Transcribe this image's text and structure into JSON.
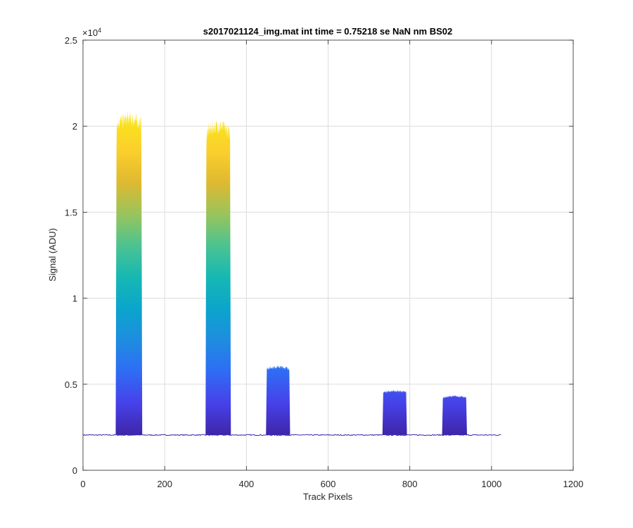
{
  "chart_data": {
    "type": "area",
    "title": "s2017021124_img.mat int time = 0.75218 se  NaN nm BS02",
    "xlabel": "Track Pixels",
    "ylabel": "Signal (ADU)",
    "xlim": [
      0,
      1200
    ],
    "ylim": [
      0,
      25000
    ],
    "x_ticks": [
      0,
      200,
      400,
      600,
      800,
      1000,
      1200
    ],
    "x_tick_labels": [
      "0",
      "200",
      "400",
      "600",
      "800",
      "1000",
      "1200"
    ],
    "y_ticks": [
      0,
      5000,
      10000,
      15000,
      20000,
      25000
    ],
    "y_tick_labels": [
      "0",
      "0.5",
      "1",
      "1.5",
      "2",
      "2.5"
    ],
    "y_exponent_label": "×10",
    "y_exponent_power": "4",
    "grid": true,
    "baseline": 2050,
    "x_range": [
      1,
      1024
    ],
    "colormap": [
      "#3e26a8",
      "#4741e9",
      "#2f6cf5",
      "#1e8de0",
      "#0ba5cc",
      "#16b8b3",
      "#4cc391",
      "#99c45c",
      "#dfb930",
      "#fbcf2d",
      "#f9e41a"
    ],
    "peaks": [
      {
        "x_start": 80,
        "x_end": 145,
        "peak_value": 20400,
        "top_value": 19500
      },
      {
        "x_start": 300,
        "x_end": 362,
        "peak_value": 20000,
        "top_value": 18500
      },
      {
        "x_start": 448,
        "x_end": 507,
        "peak_value": 6000,
        "top_value": 5700
      },
      {
        "x_start": 733,
        "x_end": 793,
        "peak_value": 4600,
        "top_value": 4400
      },
      {
        "x_start": 879,
        "x_end": 940,
        "peak_value": 4300,
        "top_value": 4050
      }
    ]
  }
}
